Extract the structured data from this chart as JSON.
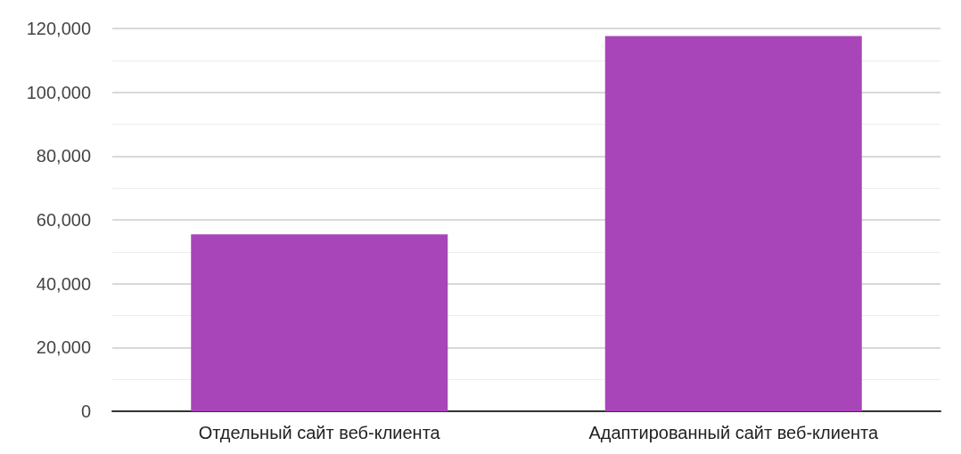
{
  "chart_data": {
    "type": "bar",
    "categories": [
      "Отдельный сайт веб-клиента",
      "Адаптированный сайт веб-клиента"
    ],
    "values": [
      55500,
      117600
    ],
    "color": "#a845b8",
    "ylim": [
      0,
      120000
    ],
    "yticks": [
      0,
      {
        "value": 20000,
        "label": "20,000"
      },
      {
        "value": 40000,
        "label": "40,000"
      },
      {
        "value": 60000,
        "label": "60,000"
      },
      {
        "value": 80000,
        "label": "80,000"
      },
      {
        "value": 100000,
        "label": "100,000"
      },
      {
        "value": 120000,
        "label": "120,000"
      }
    ],
    "grid": "y"
  }
}
